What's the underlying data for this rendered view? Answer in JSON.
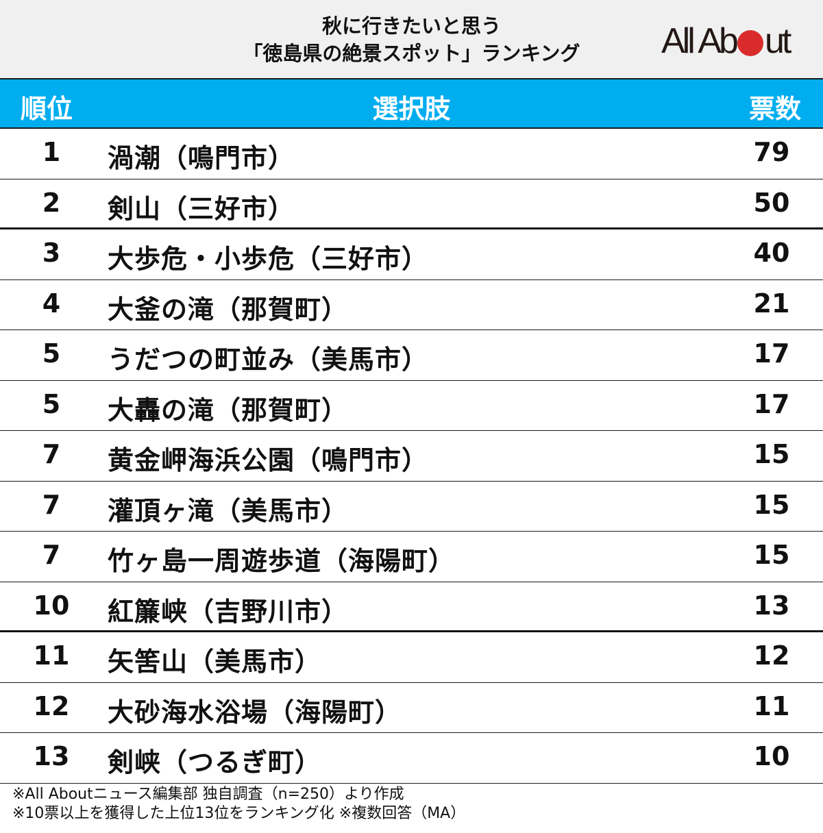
{
  "header": {
    "title_line1": "秋に行きたいと思う",
    "title_line2": "「徳島県の絶景スポット」ランキング",
    "logo": {
      "part1": "All Ab",
      "part2": "ut",
      "dot_color": "#d92b2b"
    }
  },
  "table": {
    "columns": {
      "rank": "順位",
      "choice": "選択肢",
      "votes": "票数"
    },
    "header_color": "#00adef",
    "rows": [
      {
        "rank": "1",
        "name": "渦潮（鳴門市）",
        "votes": "79"
      },
      {
        "rank": "2",
        "name": "剣山（三好市）",
        "votes": "50"
      },
      {
        "rank": "3",
        "name": "大歩危・小歩危（三好市）",
        "votes": "40"
      },
      {
        "rank": "4",
        "name": "大釜の滝（那賀町）",
        "votes": "21"
      },
      {
        "rank": "5",
        "name": "うだつの町並み（美馬市）",
        "votes": "17"
      },
      {
        "rank": "5",
        "name": "大轟の滝（那賀町）",
        "votes": "17"
      },
      {
        "rank": "7",
        "name": "黄金岬海浜公園（鳴門市）",
        "votes": "15"
      },
      {
        "rank": "7",
        "name": "灌頂ヶ滝（美馬市）",
        "votes": "15"
      },
      {
        "rank": "7",
        "name": "竹ヶ島一周遊歩道（海陽町）",
        "votes": "15"
      },
      {
        "rank": "10",
        "name": "紅簾峡（吉野川市）",
        "votes": "13"
      },
      {
        "rank": "11",
        "name": "矢筈山（美馬市）",
        "votes": "12"
      },
      {
        "rank": "12",
        "name": "大砂海水浴場（海陽町）",
        "votes": "11"
      },
      {
        "rank": "13",
        "name": "剣峡（つるぎ町）",
        "votes": "10"
      }
    ]
  },
  "footer": {
    "note1": "※All Aboutニュース編集部 独自調査（n=250）より作成",
    "note2": "※10票以上を獲得した上位13位をランキング化 ※複数回答（MA）"
  },
  "chart_data": {
    "type": "table",
    "title": "秋に行きたいと思う「徳島県の絶景スポット」ランキング",
    "columns": [
      "順位",
      "選択肢",
      "票数"
    ],
    "categories": [
      "渦潮（鳴門市）",
      "剣山（三好市）",
      "大歩危・小歩危（三好市）",
      "大釜の滝（那賀町）",
      "うだつの町並み（美馬市）",
      "大轟の滝（那賀町）",
      "黄金岬海浜公園（鳴門市）",
      "灌頂ヶ滝（美馬市）",
      "竹ヶ島一周遊歩道（海陽町）",
      "紅簾峡（吉野川市）",
      "矢筈山（美馬市）",
      "大砂海水浴場（海陽町）",
      "剣峡（つるぎ町）"
    ],
    "ranks": [
      1,
      2,
      3,
      4,
      5,
      5,
      7,
      7,
      7,
      10,
      11,
      12,
      13
    ],
    "values": [
      79,
      50,
      40,
      21,
      17,
      17,
      15,
      15,
      15,
      13,
      12,
      11,
      10
    ],
    "notes": [
      "※All Aboutニュース編集部 独自調査（n=250）より作成",
      "※10票以上を獲得した上位13位をランキング化 ※複数回答（MA）"
    ]
  }
}
